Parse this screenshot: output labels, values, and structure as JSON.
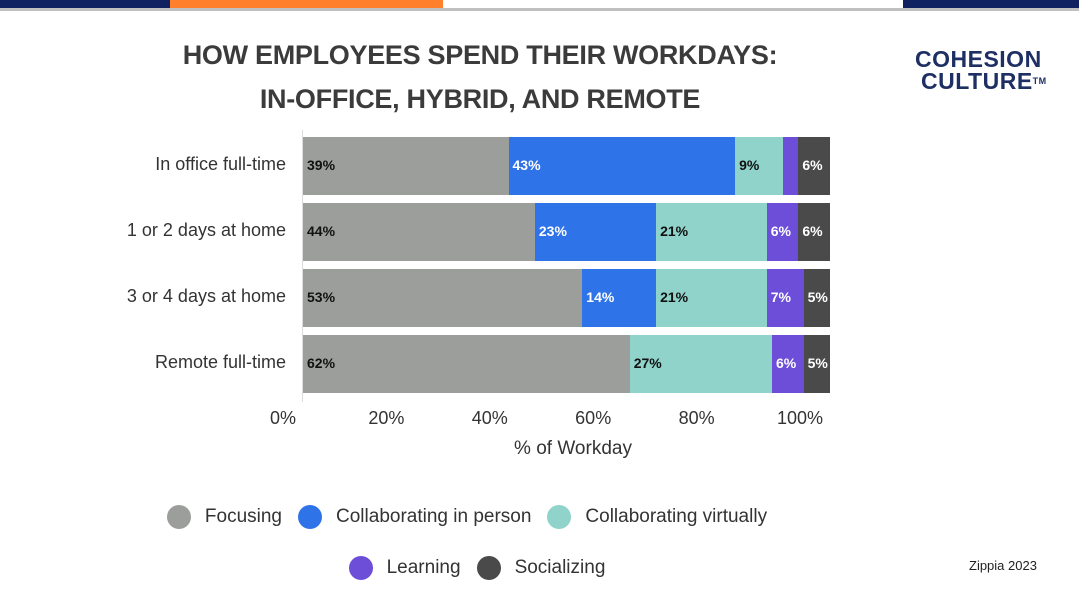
{
  "title_lines": [
    "HOW EMPLOYEES SPEND THEIR WORKDAYS:",
    "IN-OFFICE, HYBRID, AND REMOTE"
  ],
  "logo": {
    "line1": "COHESION",
    "line2": "CULTURE",
    "tm": "TM"
  },
  "source": "Zippia 2023",
  "colors": {
    "top_navy": "#0f2160",
    "top_orange": "#ff7f2a"
  },
  "chart_data": {
    "type": "bar",
    "orientation": "horizontal",
    "stacked": true,
    "xlabel": "% of Workday",
    "xlim": [
      0,
      100
    ],
    "x_ticks": [
      "0%",
      "20%",
      "40%",
      "60%",
      "80%",
      "100%"
    ],
    "categories": [
      "In office full-time",
      "1 or 2 days at home",
      "3 or 4 days at home",
      "Remote full-time"
    ],
    "series": [
      {
        "name": "Focusing",
        "color": "#9c9e9b",
        "label_color": "#111111",
        "values": [
          39,
          44,
          53,
          62
        ],
        "labels": [
          "39%",
          "44%",
          "53%",
          "62%"
        ]
      },
      {
        "name": "Collaborating in person",
        "color": "#2f73e8",
        "label_color": "#ffffff",
        "values": [
          43,
          23,
          14,
          0
        ],
        "labels": [
          "43%",
          "23%",
          "14%",
          ""
        ]
      },
      {
        "name": "Collaborating virtually",
        "color": "#8fd3ca",
        "label_color": "#111111",
        "values": [
          9,
          21,
          21,
          27
        ],
        "labels": [
          "9%",
          "21%",
          "21%",
          "27%"
        ]
      },
      {
        "name": "Learning",
        "color": "#6c4ed8",
        "label_color": "#ffffff",
        "values": [
          3,
          6,
          7,
          6
        ],
        "labels": [
          "",
          "6%",
          "7%",
          "6%"
        ]
      },
      {
        "name": "Socializing",
        "color": "#4a4a4a",
        "label_color": "#ffffff",
        "values": [
          6,
          6,
          5,
          5
        ],
        "labels": [
          "6%",
          "6%",
          "5%",
          "5%"
        ]
      }
    ],
    "legend_position": "bottom",
    "grid": false
  }
}
